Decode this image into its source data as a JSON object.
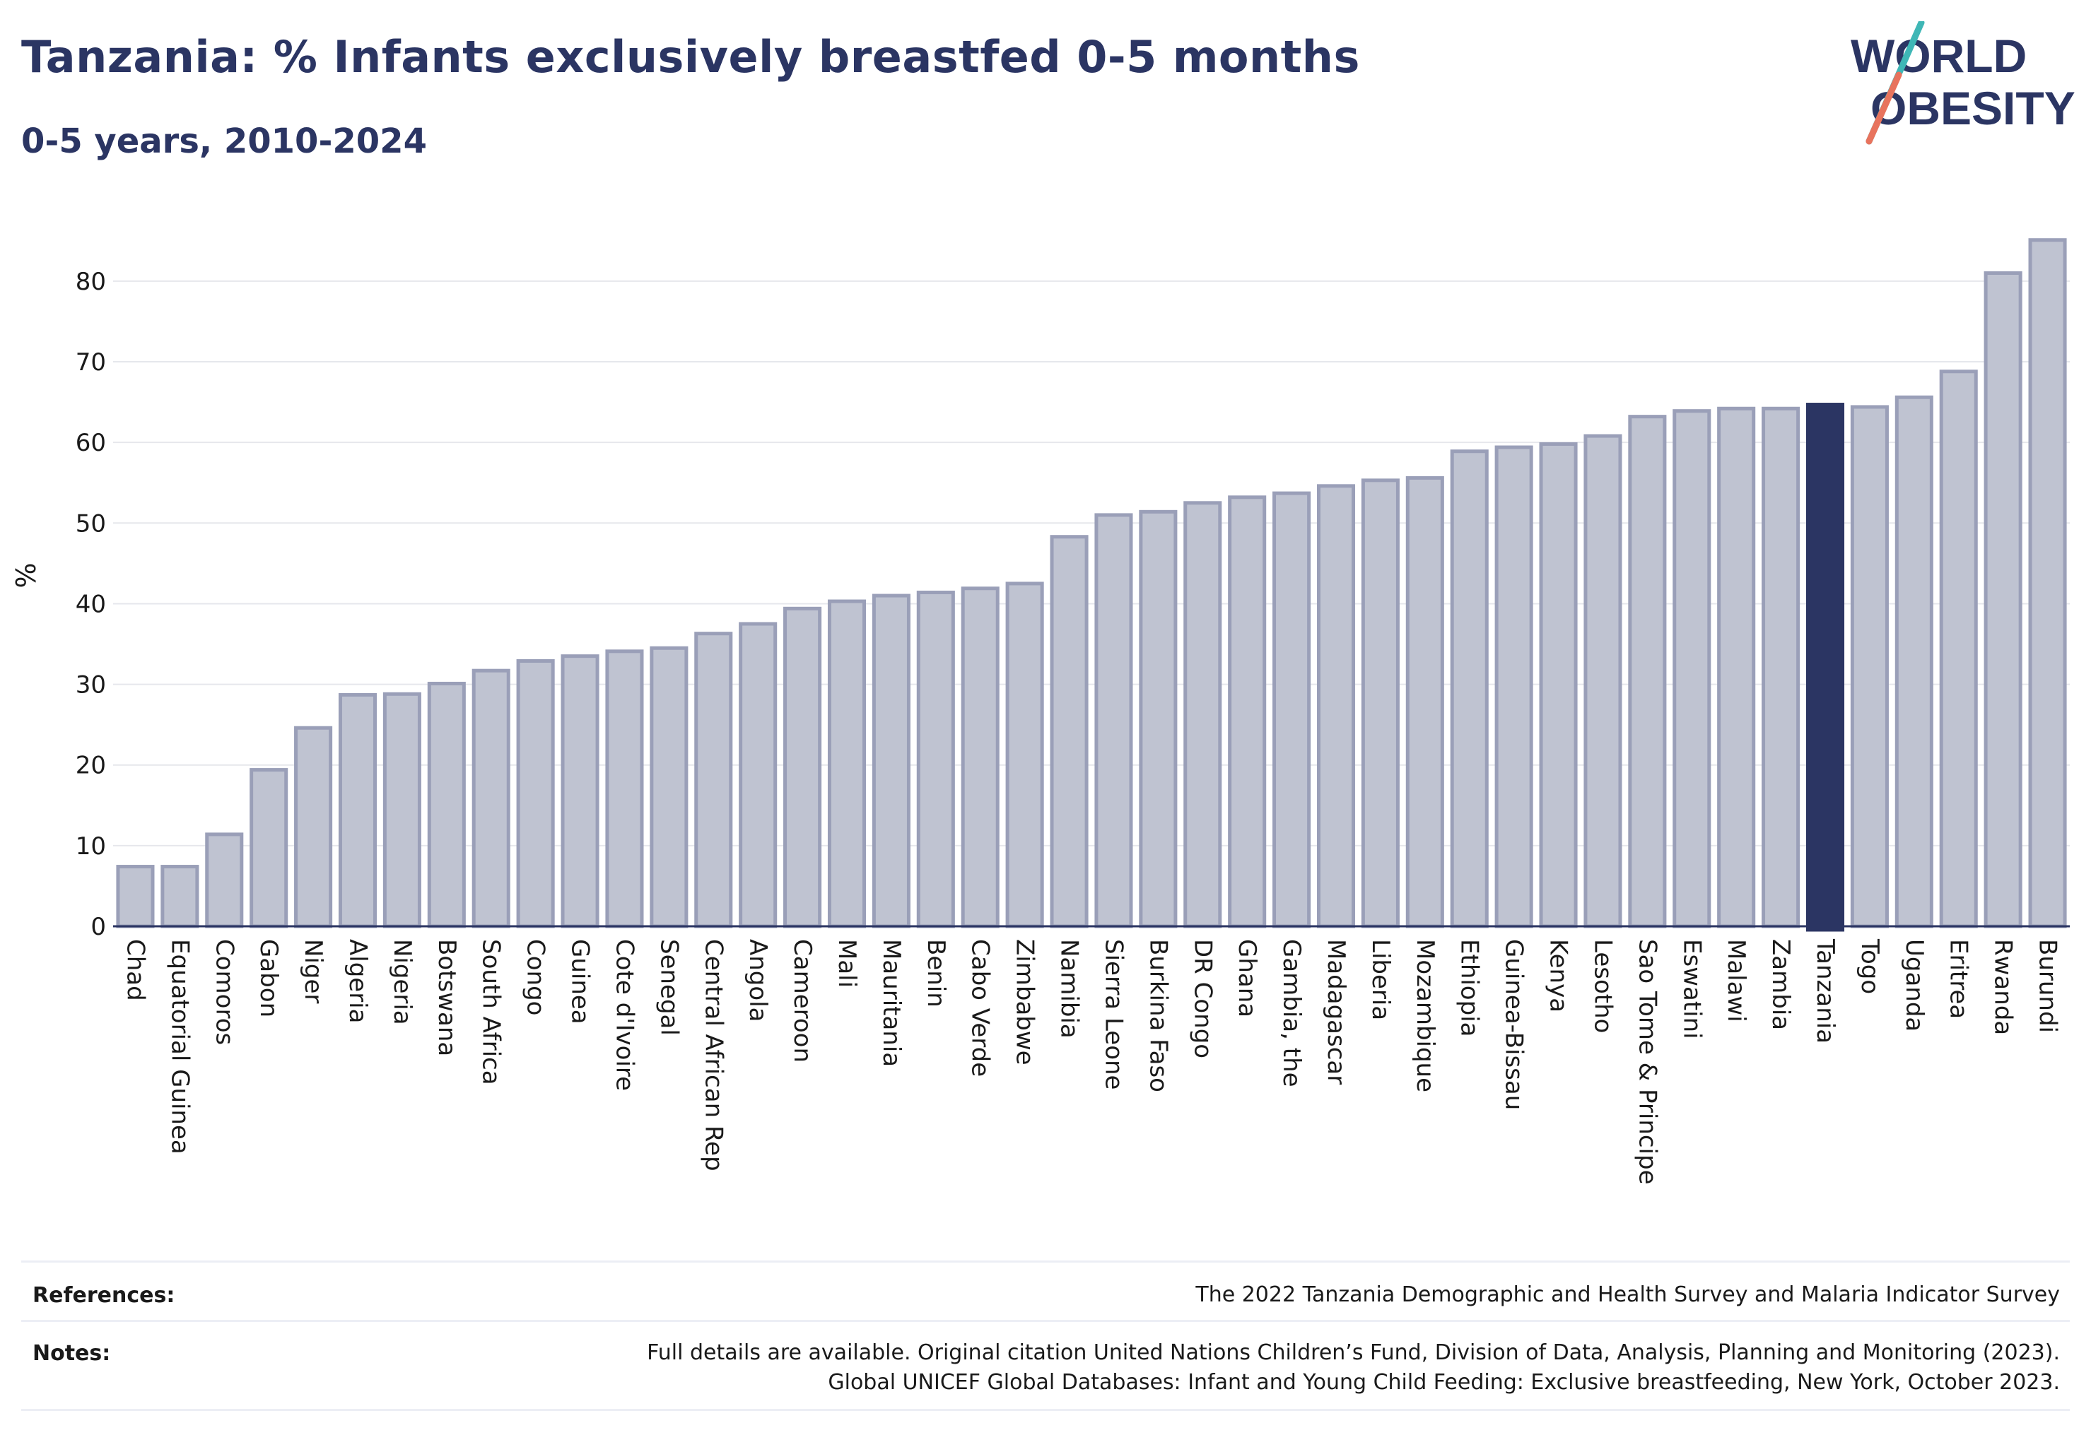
{
  "title": "Tanzania: % Infants exclusively breastfed 0-5 months",
  "subtitle": "0-5 years, 2010-2024",
  "logo": {
    "line1": "WORLD",
    "line2": "OBESITY"
  },
  "footer": {
    "references_label": "References:",
    "references_text": "The 2022 Tanzania Demographic and Health Survey and Malaria Indicator Survey",
    "notes_label": "Notes:",
    "notes_line1": "Full details are available. Original citation United Nations Children’s Fund, Division of Data, Analysis, Planning and Monitoring (2023).",
    "notes_line2": "Global UNICEF Global Databases: Infant and Young Child Feeding: Exclusive breastfeeding, New York, October 2023."
  },
  "colors": {
    "bar": "#bfc3d1",
    "bar_border": "#9a9fb8",
    "highlight": "#2b3563",
    "grid": "#e6e7ec",
    "title": "#2b3563"
  },
  "chart_data": {
    "type": "bar",
    "title": "Tanzania: % Infants exclusively breastfed 0-5 months",
    "subtitle": "0-5 years, 2010-2024",
    "xlabel": "",
    "ylabel": "%",
    "ylim": [
      0,
      87
    ],
    "yticks": [
      0,
      10,
      20,
      30,
      40,
      50,
      60,
      70,
      80
    ],
    "grid": true,
    "highlight": "Tanzania",
    "categories": [
      "Chad",
      "Equatorial Guinea",
      "Comoros",
      "Gabon",
      "Niger",
      "Algeria",
      "Nigeria",
      "Botswana",
      "South Africa",
      "Congo",
      "Guinea",
      "Cote d'Ivoire",
      "Senegal",
      "Central African Rep",
      "Angola",
      "Cameroon",
      "Mali",
      "Mauritania",
      "Benin",
      "Cabo Verde",
      "Zimbabwe",
      "Namibia",
      "Sierra Leone",
      "Burkina Faso",
      "DR Congo",
      "Ghana",
      "Gambia, the",
      "Madagascar",
      "Liberia",
      "Mozambique",
      "Ethiopia",
      "Guinea-Bissau",
      "Kenya",
      "Lesotho",
      "Sao Tome & Principe",
      "Eswatini",
      "Malawi",
      "Zambia",
      "Tanzania",
      "Togo",
      "Uganda",
      "Eritrea",
      "Rwanda",
      "Burundi"
    ],
    "values": [
      7.4,
      7.4,
      11.4,
      19.4,
      24.6,
      28.7,
      28.8,
      30.1,
      31.7,
      32.9,
      33.5,
      34.1,
      34.5,
      36.3,
      37.5,
      39.4,
      40.3,
      41.0,
      41.4,
      41.9,
      42.5,
      48.3,
      51.0,
      51.4,
      52.5,
      53.2,
      53.7,
      54.6,
      55.3,
      55.6,
      58.9,
      59.4,
      59.8,
      60.8,
      63.2,
      63.9,
      64.2,
      64.2,
      64.7,
      64.4,
      65.6,
      68.8,
      81.0,
      85.1
    ]
  }
}
